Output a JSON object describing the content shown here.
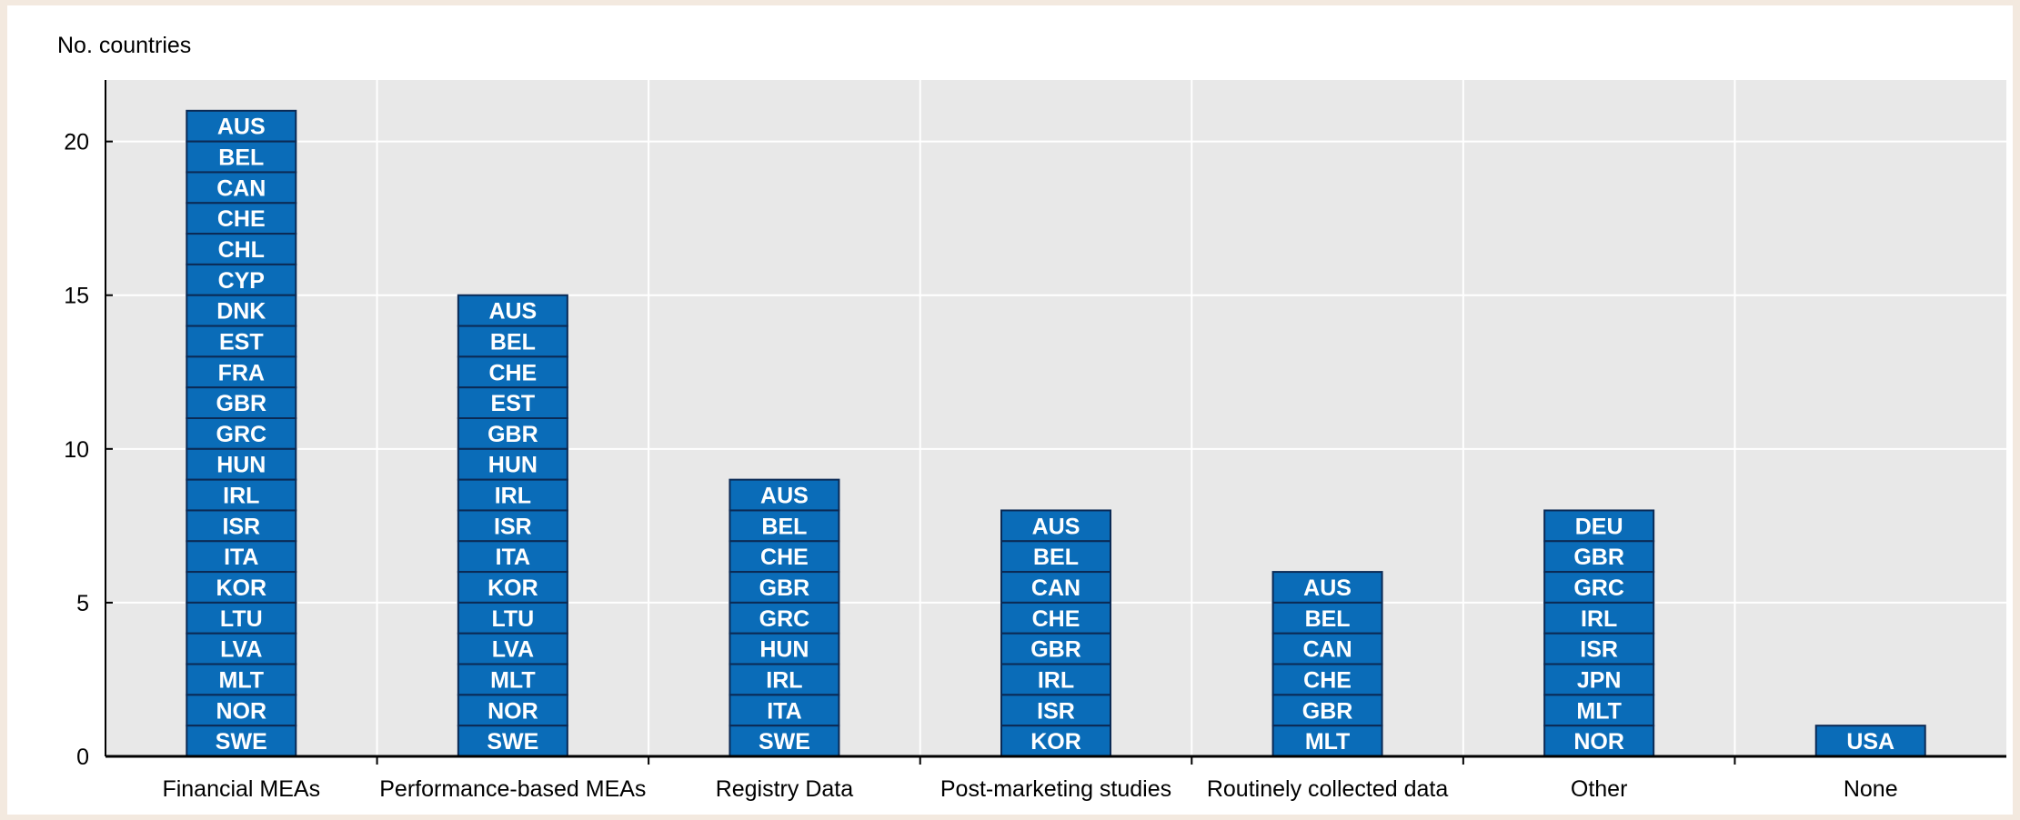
{
  "chart_data": {
    "type": "bar",
    "title": "",
    "xlabel": "",
    "ylabel": "No. countries",
    "ylim": [
      0,
      22
    ],
    "yticks": [
      0,
      5,
      10,
      15,
      20
    ],
    "grid": true,
    "colors": {
      "bar": "#0a6cb8",
      "bar_border": "#0b2a55",
      "plot_background": "#e8e8e8",
      "page_background": "#f3e9df"
    },
    "categories": [
      "Financial MEAs",
      "Performance-based MEAs",
      "Registry Data",
      "Post-marketing studies",
      "Routinely collected data",
      "Other",
      "None"
    ],
    "values": [
      21,
      15,
      9,
      8,
      6,
      8,
      1
    ],
    "stacks": [
      [
        "AUS",
        "BEL",
        "CAN",
        "CHE",
        "CHL",
        "CYP",
        "DNK",
        "EST",
        "FRA",
        "GBR",
        "GRC",
        "HUN",
        "IRL",
        "ISR",
        "ITA",
        "KOR",
        "LTU",
        "LVA",
        "MLT",
        "NOR",
        "SWE"
      ],
      [
        "AUS",
        "BEL",
        "CHE",
        "EST",
        "GBR",
        "HUN",
        "IRL",
        "ISR",
        "ITA",
        "KOR",
        "LTU",
        "LVA",
        "MLT",
        "NOR",
        "SWE"
      ],
      [
        "AUS",
        "BEL",
        "CHE",
        "GBR",
        "GRC",
        "HUN",
        "IRL",
        "ITA",
        "SWE"
      ],
      [
        "AUS",
        "BEL",
        "CAN",
        "CHE",
        "GBR",
        "IRL",
        "ISR",
        "KOR"
      ],
      [
        "AUS",
        "BEL",
        "CAN",
        "CHE",
        "GBR",
        "MLT"
      ],
      [
        "DEU",
        "GBR",
        "GRC",
        "IRL",
        "ISR",
        "JPN",
        "MLT",
        "NOR"
      ],
      [
        "USA"
      ]
    ]
  }
}
